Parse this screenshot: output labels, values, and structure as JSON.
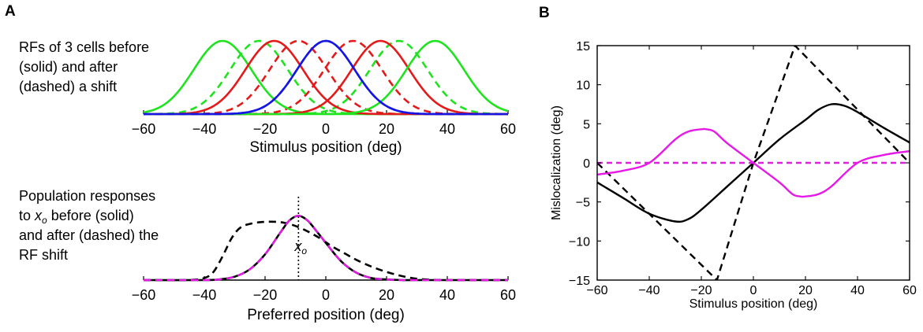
{
  "panel_labels": {
    "a": "A",
    "b": "B"
  },
  "annotations": {
    "a1": [
      "RFs of 3 cells before",
      "(solid) and after",
      "(dashed) a shift"
    ],
    "a2_line1": "Population responses",
    "a2_line2_pre": "to ",
    "a2_line2_x": "x",
    "a2_line2_sub": "o",
    "a2_line2_post": " before (solid)",
    "a2_line3": "and after (dashed) the",
    "a2_line4": "RF shift",
    "xo_x": "x",
    "xo_sub": "o"
  },
  "colors": {
    "green": "#1fe31f",
    "red": "#e41a1a",
    "blue": "#1515e6",
    "black": "#000000",
    "magenta": "#e619e6"
  },
  "chart_data": [
    {
      "type": "line",
      "panel": "A-top",
      "xlabel": "Stimulus position (deg)",
      "ylabel": "",
      "xlim": [
        -60,
        60
      ],
      "ylim": [
        0,
        1
      ],
      "xticks": [
        -60,
        -40,
        -20,
        0,
        20,
        40,
        60
      ],
      "rf_width_sd": 9.5,
      "series": [
        {
          "name": "green cell before",
          "color": "green",
          "style": "solid",
          "center": -34,
          "amp": 1
        },
        {
          "name": "green cell after",
          "color": "green",
          "style": "dashed",
          "center": -22,
          "amp": 1
        },
        {
          "name": "red cell before",
          "color": "red",
          "style": "solid",
          "center": -17,
          "amp": 1
        },
        {
          "name": "red cell after",
          "color": "red",
          "style": "dashed",
          "center": -9,
          "amp": 1
        },
        {
          "name": "blue cell before",
          "color": "blue",
          "style": "solid",
          "center": 0,
          "amp": 1
        },
        {
          "name": "blue cell after",
          "color": "blue",
          "style": "dashed",
          "center": 0,
          "amp": 1
        },
        {
          "name": "red cell before (right)",
          "color": "red",
          "style": "solid",
          "center": 18,
          "amp": 1
        },
        {
          "name": "red cell after (right)",
          "color": "red",
          "style": "dashed",
          "center": 9,
          "amp": 1
        },
        {
          "name": "green cell before (right)",
          "color": "green",
          "style": "solid",
          "center": 36,
          "amp": 1
        },
        {
          "name": "green cell after (right)",
          "color": "green",
          "style": "dashed",
          "center": 24,
          "amp": 1
        }
      ]
    },
    {
      "type": "line",
      "panel": "A-bottom",
      "xlabel": "Preferred position (deg)",
      "ylabel": "",
      "xlim": [
        -60,
        60
      ],
      "ylim": [
        0,
        1
      ],
      "xticks": [
        -60,
        -40,
        -20,
        0,
        20,
        40,
        60
      ],
      "stimulus_position": -9,
      "series": [
        {
          "name": "before shift",
          "color": "black",
          "style": "solid",
          "x": [
            -60,
            -40,
            -35,
            -30,
            -25,
            -20,
            -15,
            -12,
            -9,
            -6,
            -3,
            0,
            5,
            10,
            15,
            20,
            25,
            30,
            60
          ],
          "y": [
            0,
            0,
            0.01,
            0.05,
            0.16,
            0.38,
            0.7,
            0.88,
            0.95,
            0.88,
            0.72,
            0.55,
            0.28,
            0.11,
            0.03,
            0.01,
            0,
            0,
            0
          ]
        },
        {
          "name": "after shift",
          "color": "black",
          "style": "dashed",
          "x": [
            -60,
            -45,
            -40,
            -37,
            -34,
            -31,
            -28,
            -24,
            -20,
            -16,
            -13,
            -10,
            -6,
            -2,
            2,
            6,
            10,
            15,
            20,
            25,
            30,
            35,
            40,
            60
          ],
          "y": [
            0,
            0,
            0.03,
            0.12,
            0.35,
            0.62,
            0.78,
            0.84,
            0.86,
            0.86,
            0.84,
            0.8,
            0.72,
            0.62,
            0.5,
            0.4,
            0.3,
            0.2,
            0.12,
            0.06,
            0.02,
            0.005,
            0,
            0
          ]
        },
        {
          "name": "magenta overlay",
          "color": "magenta",
          "style": "dashed",
          "x": [
            -60,
            -40,
            -35,
            -30,
            -25,
            -20,
            -15,
            -12,
            -9,
            -6,
            -3,
            0,
            5,
            10,
            15,
            20,
            25,
            30,
            60
          ],
          "y": [
            0,
            0,
            0.01,
            0.05,
            0.16,
            0.38,
            0.7,
            0.88,
            0.95,
            0.88,
            0.72,
            0.55,
            0.28,
            0.11,
            0.03,
            0.01,
            0,
            0,
            0
          ]
        }
      ]
    },
    {
      "type": "line",
      "panel": "B",
      "xlabel": "Stimulus position (deg)",
      "ylabel": "Mislocalization (deg)",
      "xlim": [
        -60,
        60
      ],
      "ylim": [
        -15,
        15
      ],
      "xticks": [
        -60,
        -40,
        -20,
        0,
        20,
        40,
        60
      ],
      "yticks": [
        -15,
        -10,
        -5,
        0,
        5,
        10,
        15
      ],
      "series": [
        {
          "name": "black solid",
          "color": "black",
          "style": "solid",
          "x": [
            -60,
            -50,
            -40,
            -30,
            -25,
            -20,
            -10,
            0,
            10,
            20,
            25,
            30,
            35,
            40,
            50,
            60
          ],
          "y": [
            -2.5,
            -4.5,
            -6.5,
            -7.5,
            -7.2,
            -6,
            -3,
            0,
            3,
            5.5,
            6.8,
            7.5,
            7.3,
            6.5,
            4.5,
            2.6
          ]
        },
        {
          "name": "black dashed",
          "color": "black",
          "style": "dashed",
          "x": [
            -60,
            -14,
            0,
            16,
            60
          ],
          "y": [
            0,
            -15,
            0,
            15,
            0
          ]
        },
        {
          "name": "magenta solid",
          "color": "magenta",
          "style": "solid",
          "x": [
            -60,
            -50,
            -40,
            -30,
            -25,
            -20,
            -18,
            -15,
            -10,
            0,
            10,
            15,
            18,
            20,
            25,
            30,
            40,
            50,
            60
          ],
          "y": [
            -1.5,
            -1,
            0,
            3,
            4,
            4.3,
            4.3,
            4,
            2.5,
            0,
            -2.5,
            -4,
            -4.3,
            -4.3,
            -4,
            -3,
            0,
            1,
            1.5
          ]
        },
        {
          "name": "magenta dashed",
          "color": "magenta",
          "style": "dashed",
          "x": [
            -60,
            60
          ],
          "y": [
            0,
            0
          ]
        }
      ]
    }
  ]
}
